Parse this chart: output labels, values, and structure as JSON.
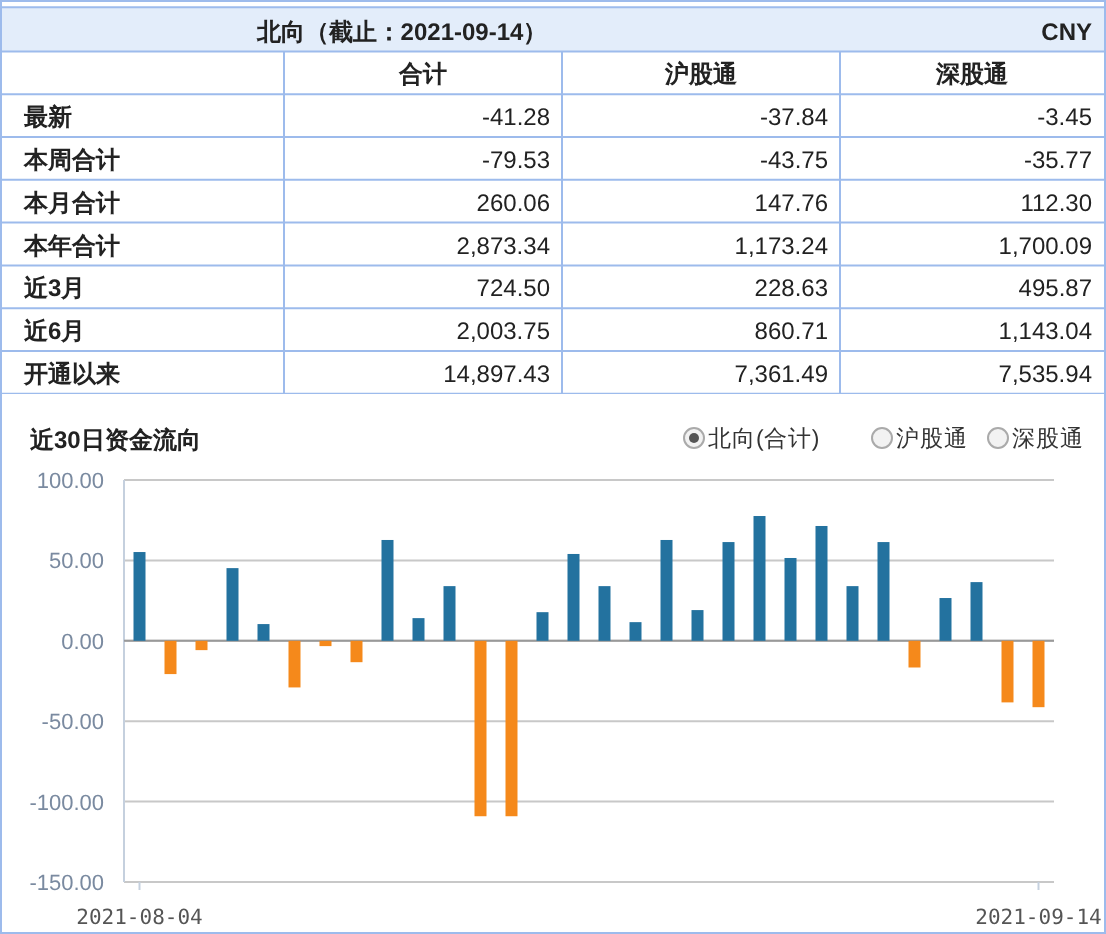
{
  "chart_data": [
    {
      "type": "other",
      "title": "北向（截止：2021-09-14）",
      "annotations": [
        "CNY"
      ],
      "categories": [
        "合计",
        "沪股通",
        "深股通"
      ],
      "y_categories": [
        "最新",
        "本周合计",
        "本月合计",
        "本年合计",
        "近3月",
        "近6月",
        "开通以来"
      ],
      "cell_labels": [
        [
          "-41.28",
          "-37.84",
          "-3.45"
        ],
        [
          "-79.53",
          "-43.75",
          "-35.77"
        ],
        [
          "260.06",
          "147.76",
          "112.30"
        ],
        [
          "2,873.34",
          "1,173.24",
          "1,700.09"
        ],
        [
          "724.50",
          "228.63",
          "495.87"
        ],
        [
          "2,003.75",
          "860.71",
          "1,143.04"
        ],
        [
          "14,897.43",
          "7,361.49",
          "7,535.94"
        ]
      ]
    },
    {
      "type": "bar",
      "title": "近30日资金流向",
      "annotations": [
        "北向(合计)",
        "沪股通",
        "深股通"
      ],
      "categories": [
        "2021-08-04",
        null,
        null,
        null,
        null,
        null,
        null,
        null,
        null,
        null,
        null,
        null,
        null,
        null,
        null,
        null,
        null,
        null,
        null,
        null,
        null,
        null,
        null,
        null,
        null,
        null,
        null,
        null,
        null,
        "2021-09-14"
      ],
      "values": [
        55.2,
        -20.7,
        -5.8,
        45.2,
        10.4,
        -29.0,
        -3.3,
        -13.3,
        62.7,
        14.1,
        34.0,
        -109.1,
        -109.1,
        17.8,
        54.0,
        34.0,
        11.6,
        62.7,
        19.1,
        61.4,
        77.6,
        51.5,
        71.4,
        34.0,
        61.4,
        -16.6,
        26.6,
        36.5,
        -38.3,
        -41.28
      ],
      "colors": [
        "#23729f",
        "#f5891b",
        "#f5891b",
        "#23729f",
        "#23729f",
        "#f5891b",
        "#f5891b",
        "#f5891b",
        "#23729f",
        "#23729f",
        "#23729f",
        "#f5891b",
        "#f5891b",
        "#23729f",
        "#23729f",
        "#23729f",
        "#23729f",
        "#23729f",
        "#23729f",
        "#23729f",
        "#23729f",
        "#23729f",
        "#23729f",
        "#23729f",
        "#23729f",
        "#f5891b",
        "#23729f",
        "#23729f",
        "#f5891b",
        "#f5891b"
      ],
      "ylim": [
        -150,
        100
      ],
      "yticks": [
        {
          "value": 100,
          "label": "100.00"
        },
        {
          "value": 50,
          "label": "50.00"
        },
        {
          "value": 0,
          "label": "0.00"
        },
        {
          "value": -50,
          "label": "-50.00"
        },
        {
          "value": -100,
          "label": "-100.00"
        },
        {
          "value": -150,
          "label": "-150.00"
        }
      ],
      "grid": "y"
    }
  ]
}
